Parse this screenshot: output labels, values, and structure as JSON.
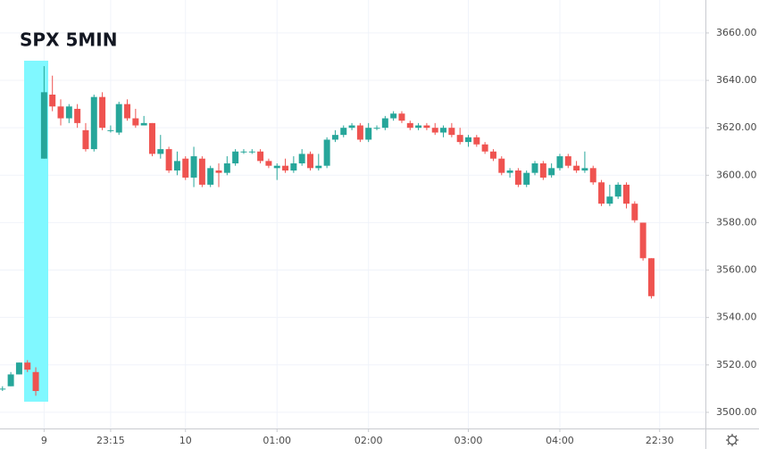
{
  "chart_data": {
    "type": "candlestick",
    "title": "SPX 5MIN",
    "x": [
      0,
      1,
      2,
      3,
      4,
      5,
      6,
      7,
      8,
      9,
      10,
      11,
      12,
      13,
      14,
      15,
      16,
      17,
      18,
      19,
      20,
      21,
      22,
      23,
      24,
      25,
      26,
      27,
      28,
      29,
      30,
      31,
      32,
      33,
      34,
      35,
      36,
      37,
      38,
      39,
      40,
      41,
      42,
      43,
      44,
      45,
      46,
      47,
      48,
      49,
      50,
      51,
      52,
      53,
      54,
      55,
      56,
      57,
      58,
      59,
      60,
      61,
      62,
      63,
      64,
      65,
      66,
      67,
      68,
      69,
      70,
      71,
      72,
      73,
      74,
      75,
      76,
      77,
      78
    ],
    "open": [
      3510,
      3511,
      3516,
      3521,
      3517,
      3607,
      3634,
      3629,
      3624,
      3628,
      3619,
      3611,
      3633,
      3619,
      3618,
      3630,
      3624,
      3621,
      3622,
      3609,
      3611,
      3602,
      3607,
      3599,
      3607,
      3596,
      3602,
      3601,
      3605,
      3610,
      3610,
      3610,
      3606,
      3603,
      3604,
      3602,
      3605,
      3609,
      3603,
      3604,
      3615,
      3617,
      3620,
      3621,
      3615,
      3620,
      3620,
      3624,
      3626,
      3622,
      3620,
      3621,
      3620,
      3618,
      3620,
      3617,
      3614,
      3616,
      3613,
      3610,
      3607,
      3601,
      3602,
      3596,
      3601,
      3605,
      3600,
      3603,
      3608,
      3604,
      3602,
      3603,
      3597,
      3588,
      3591,
      3596,
      3588,
      3580,
      3565
    ],
    "high": [
      3511,
      3517,
      3521,
      3522,
      3519,
      3646,
      3642,
      3632,
      3630,
      3630,
      3622,
      3634,
      3635,
      3621,
      3631,
      3632,
      3628,
      3625,
      3622,
      3617,
      3612,
      3610,
      3608,
      3612,
      3608,
      3604,
      3605,
      3608,
      3611,
      3611,
      3611,
      3611,
      3607,
      3605,
      3607,
      3608,
      3611,
      3610,
      3609,
      3616,
      3619,
      3621,
      3622,
      3622,
      3622,
      3621,
      3625,
      3627,
      3627,
      3623,
      3622,
      3622,
      3622,
      3621,
      3622,
      3620,
      3617,
      3617,
      3614,
      3611,
      3608,
      3603,
      3603,
      3602,
      3606,
      3606,
      3605,
      3609,
      3609,
      3606,
      3610,
      3604,
      3598,
      3596,
      3597,
      3597,
      3589,
      3580,
      3565
    ],
    "low": [
      3509,
      3511,
      3516,
      3517,
      3507,
      3607,
      3627,
      3621,
      3622,
      3620,
      3610,
      3610,
      3619,
      3618,
      3617,
      3623,
      3620,
      3621,
      3608,
      3607,
      3601,
      3600,
      3598,
      3595,
      3595,
      3595,
      3595,
      3600,
      3604,
      3609,
      3609,
      3605,
      3603,
      3598,
      3601,
      3601,
      3604,
      3602,
      3602,
      3603,
      3614,
      3616,
      3619,
      3614,
      3614,
      3619,
      3619,
      3623,
      3622,
      3619,
      3619,
      3619,
      3617,
      3616,
      3616,
      3613,
      3612,
      3612,
      3609,
      3606,
      3600,
      3599,
      3595,
      3595,
      3600,
      3598,
      3599,
      3602,
      3603,
      3601,
      3601,
      3596,
      3587,
      3587,
      3590,
      3586,
      3580,
      3564,
      3548
    ],
    "close": [
      3510,
      3516,
      3521,
      3518,
      3509,
      3635,
      3629,
      3624,
      3629,
      3622,
      3611,
      3633,
      3620,
      3619,
      3630,
      3624,
      3621,
      3622,
      3609,
      3611,
      3602,
      3606,
      3599,
      3608,
      3596,
      3603,
      3601,
      3605,
      3610,
      3610,
      3610,
      3606,
      3604,
      3604,
      3602,
      3605,
      3609,
      3603,
      3604,
      3615,
      3617,
      3620,
      3621,
      3615,
      3620,
      3620,
      3624,
      3626,
      3623,
      3620,
      3621,
      3620,
      3618,
      3620,
      3617,
      3614,
      3616,
      3613,
      3610,
      3607,
      3601,
      3602,
      3596,
      3601,
      3605,
      3599,
      3603,
      3608,
      3604,
      3602,
      3603,
      3597,
      3588,
      3591,
      3596,
      3588,
      3581,
      3565,
      3549
    ],
    "up_color": "#26a69a",
    "down_color": "#ef5350",
    "xlim": [
      -0.3,
      84.5
    ],
    "xticks": [
      {
        "value": 5,
        "label": "9"
      },
      {
        "value": 13,
        "label": "23:15"
      },
      {
        "value": 22,
        "label": "10"
      },
      {
        "value": 33,
        "label": "01:00"
      },
      {
        "value": 44,
        "label": "02:00"
      },
      {
        "value": 56,
        "label": "03:00"
      },
      {
        "value": 67,
        "label": "04:00"
      },
      {
        "value": 79,
        "label": "22:30"
      }
    ],
    "ylim": [
      3493.2,
      3673.9
    ],
    "yticks": [
      {
        "value": 3500,
        "label": "3500.00"
      },
      {
        "value": 3520,
        "label": "3520.00"
      },
      {
        "value": 3540,
        "label": "3540.00"
      },
      {
        "value": 3560,
        "label": "3560.00"
      },
      {
        "value": 3580,
        "label": "3580.00"
      },
      {
        "value": 3600,
        "label": "3600.00"
      },
      {
        "value": 3620,
        "label": "3620.00"
      },
      {
        "value": 3640,
        "label": "3640.00"
      },
      {
        "value": 3660,
        "label": "3660.00"
      }
    ],
    "grid": true
  }
}
